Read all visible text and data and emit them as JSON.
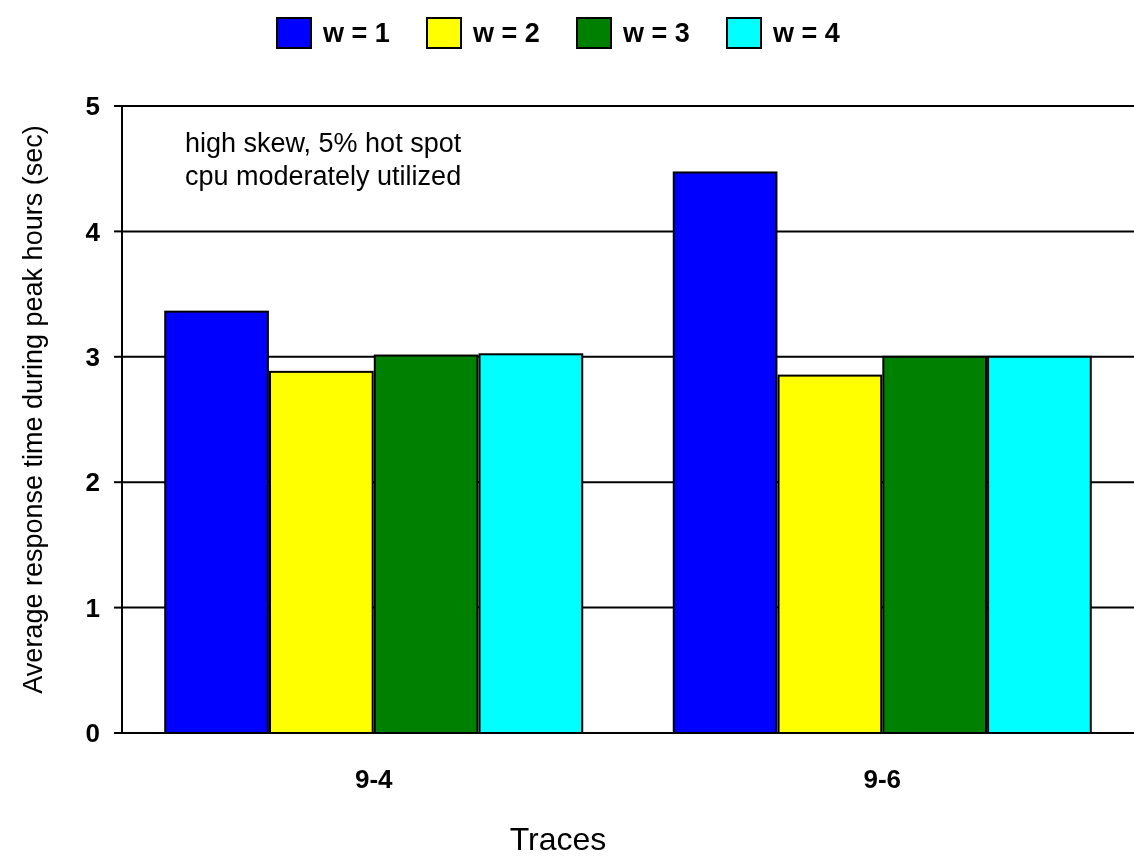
{
  "chart_data": {
    "type": "bar",
    "xlabel": "Traces",
    "ylabel": "Average response time during peak hours (sec)",
    "categories": [
      "9-4",
      "9-6"
    ],
    "series": [
      {
        "name": "w = 1",
        "color": "#0000ff",
        "values": [
          3.36,
          4.47
        ]
      },
      {
        "name": "w = 2",
        "color": "#ffff00",
        "values": [
          2.88,
          2.85
        ]
      },
      {
        "name": "w = 3",
        "color": "#008000",
        "values": [
          3.01,
          3.0
        ]
      },
      {
        "name": "w = 4",
        "color": "#00ffff",
        "values": [
          3.02,
          3.0
        ]
      }
    ],
    "ylim": [
      0,
      5
    ],
    "yticks": [
      0,
      1,
      2,
      3,
      4,
      5
    ],
    "grid": "y",
    "legend": "top",
    "annotations": [
      "high skew, 5% hot spot",
      "cpu moderately utilized"
    ]
  }
}
